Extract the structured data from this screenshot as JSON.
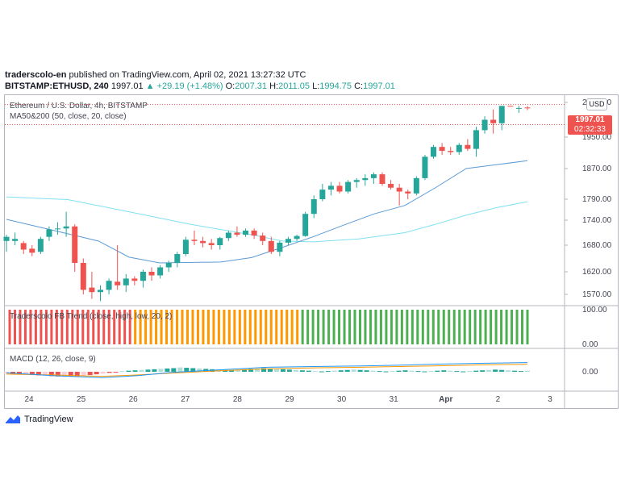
{
  "header": {
    "author": "traderscolo-en",
    "published_text": "published on TradingView.com, April 02, 2021 13:27:32 UTC",
    "symbol": "BITSTAMP:ETHUSD, 240",
    "last": "1997.01",
    "change": "+29.19 (+1.48%)",
    "open_label": "O:",
    "open": "2007.31",
    "high_label": "H:",
    "high": "2011.05",
    "low_label": "L:",
    "low": "1994.75",
    "close_label": "C:",
    "close": "1997.01"
  },
  "pane_labels": {
    "main": "Ethereum / U.S. Dollar, 4h, BITSTAMP",
    "ma": "MA50&200 (50, close, 20, close)",
    "trend": "Traderscolo FB Trend (close, high, low, 20, 2)",
    "macd": "MACD (12, 26, close, 9)"
  },
  "price_tag": {
    "value": "1997.01",
    "countdown": "02:32:33"
  },
  "currency_button": "USD",
  "footer": {
    "brand": "TradingView"
  },
  "colors": {
    "up": "#26a69a",
    "down": "#ef5350",
    "ma_fast": "#5b9bd5",
    "ma_slow": "#7fe0f0",
    "trend_bull": "#4caf50",
    "trend_bear": "#ef5350",
    "trend_neutral": "#ff9800"
  },
  "chart_data": {
    "type": "candlestick",
    "price_axis_ticks": [
      "2000.00",
      "1950.00",
      "1870.00",
      "1790.00",
      "1740.00",
      "1680.00",
      "1620.00",
      "1570.00"
    ],
    "trend_axis_ticks": [
      "100.00",
      "0.00"
    ],
    "macd_axis_ticks": [
      "0.00"
    ],
    "x_ticks": [
      {
        "label": "24",
        "i": 4
      },
      {
        "label": "25",
        "i": 10
      },
      {
        "label": "26",
        "i": 16
      },
      {
        "label": "27",
        "i": 22
      },
      {
        "label": "28",
        "i": 28
      },
      {
        "label": "29",
        "i": 34
      },
      {
        "label": "30",
        "i": 40
      },
      {
        "label": "31",
        "i": 46
      },
      {
        "label": "Apr",
        "i": 52
      },
      {
        "label": "2",
        "i": 58
      },
      {
        "label": "3",
        "i": 64
      }
    ],
    "ohlc": [
      [
        1690,
        1705,
        1665,
        1700
      ],
      [
        1690,
        1710,
        1680,
        1695
      ],
      [
        1685,
        1690,
        1660,
        1670
      ],
      [
        1672,
        1680,
        1655,
        1663
      ],
      [
        1665,
        1700,
        1660,
        1695
      ],
      [
        1700,
        1725,
        1690,
        1718
      ],
      [
        1718,
        1735,
        1705,
        1720
      ],
      [
        1720,
        1760,
        1700,
        1725
      ],
      [
        1725,
        1730,
        1620,
        1640
      ],
      [
        1640,
        1650,
        1570,
        1580
      ],
      [
        1585,
        1620,
        1560,
        1575
      ],
      [
        1575,
        1590,
        1555,
        1580
      ],
      [
        1580,
        1605,
        1570,
        1600
      ],
      [
        1598,
        1680,
        1580,
        1590
      ],
      [
        1590,
        1615,
        1575,
        1605
      ],
      [
        1605,
        1610,
        1590,
        1600
      ],
      [
        1600,
        1625,
        1585,
        1620
      ],
      [
        1620,
        1630,
        1600,
        1612
      ],
      [
        1612,
        1635,
        1605,
        1630
      ],
      [
        1630,
        1645,
        1620,
        1640
      ],
      [
        1640,
        1665,
        1630,
        1660
      ],
      [
        1660,
        1700,
        1655,
        1693
      ],
      [
        1693,
        1715,
        1680,
        1690
      ],
      [
        1690,
        1700,
        1675,
        1685
      ],
      [
        1685,
        1695,
        1670,
        1680
      ],
      [
        1680,
        1700,
        1670,
        1697
      ],
      [
        1697,
        1715,
        1690,
        1710
      ],
      [
        1710,
        1725,
        1700,
        1705
      ],
      [
        1705,
        1720,
        1700,
        1715
      ],
      [
        1715,
        1720,
        1695,
        1703
      ],
      [
        1703,
        1710,
        1680,
        1690
      ],
      [
        1690,
        1700,
        1660,
        1665
      ],
      [
        1665,
        1690,
        1655,
        1686
      ],
      [
        1686,
        1700,
        1680,
        1695
      ],
      [
        1695,
        1705,
        1690,
        1702
      ],
      [
        1702,
        1760,
        1700,
        1755
      ],
      [
        1755,
        1800,
        1745,
        1790
      ],
      [
        1790,
        1830,
        1785,
        1815
      ],
      [
        1815,
        1835,
        1800,
        1825
      ],
      [
        1825,
        1835,
        1805,
        1810
      ],
      [
        1810,
        1840,
        1805,
        1835
      ],
      [
        1835,
        1845,
        1820,
        1840
      ],
      [
        1840,
        1855,
        1825,
        1845
      ],
      [
        1845,
        1860,
        1830,
        1855
      ],
      [
        1855,
        1860,
        1825,
        1830
      ],
      [
        1830,
        1840,
        1815,
        1820
      ],
      [
        1820,
        1830,
        1775,
        1810
      ],
      [
        1810,
        1815,
        1790,
        1805
      ],
      [
        1805,
        1850,
        1800,
        1845
      ],
      [
        1845,
        1905,
        1840,
        1900
      ],
      [
        1900,
        1930,
        1895,
        1925
      ],
      [
        1925,
        1935,
        1905,
        1915
      ],
      [
        1915,
        1925,
        1905,
        1912
      ],
      [
        1912,
        1935,
        1905,
        1930
      ],
      [
        1930,
        1945,
        1915,
        1920
      ],
      [
        1920,
        1965,
        1900,
        1960
      ],
      [
        1960,
        1980,
        1955,
        1975
      ],
      [
        1975,
        1990,
        1955,
        1970
      ],
      [
        1970,
        2020,
        1960,
        2005
      ],
      [
        2005,
        2010,
        1990,
        2000
      ],
      [
        2000,
        2015,
        1995,
        2008
      ],
      [
        2007.31,
        2011.05,
        1994.75,
        1997.01
      ]
    ],
    "ma_fast": [
      [
        0,
        1742
      ],
      [
        6,
        1716
      ],
      [
        12,
        1690
      ],
      [
        16,
        1653
      ],
      [
        20,
        1640
      ],
      [
        28,
        1642
      ],
      [
        32,
        1652
      ],
      [
        36,
        1675
      ],
      [
        40,
        1700
      ],
      [
        44,
        1728
      ],
      [
        48,
        1755
      ],
      [
        52,
        1775
      ],
      [
        56,
        1820
      ],
      [
        60,
        1870
      ],
      [
        64,
        1880
      ],
      [
        68,
        1890
      ]
    ],
    "ma_slow": [
      [
        0,
        1796
      ],
      [
        8,
        1789
      ],
      [
        16,
        1760
      ],
      [
        24,
        1730
      ],
      [
        32,
        1705
      ],
      [
        36,
        1690
      ],
      [
        40,
        1688
      ],
      [
        46,
        1695
      ],
      [
        52,
        1710
      ],
      [
        56,
        1730
      ],
      [
        60,
        1752
      ],
      [
        64,
        1770
      ],
      [
        68,
        1784
      ]
    ],
    "trend": {
      "bear_count": 24,
      "neutral_count": 32,
      "bull_count": 44
    },
    "macd_hist": [
      -5,
      -6,
      -7,
      -8,
      -9,
      -10,
      -11,
      -12,
      -13,
      -14,
      -13,
      -12,
      -11,
      -9,
      -7,
      -5,
      -3,
      -2,
      2,
      3,
      4,
      5,
      6,
      7,
      8,
      9,
      10,
      12,
      11,
      10,
      9,
      8,
      7,
      6,
      5,
      4,
      6,
      7,
      8,
      9,
      10,
      9,
      8,
      7,
      6,
      5,
      4,
      3,
      2,
      1,
      2,
      3,
      4,
      5,
      6,
      5,
      4,
      3,
      2,
      1,
      2,
      3,
      4,
      3,
      2,
      1,
      2,
      3,
      4,
      3,
      2,
      1,
      2,
      3,
      4,
      5,
      6,
      5,
      4,
      3,
      2,
      3
    ],
    "macd_line": [
      [
        0,
        -3
      ],
      [
        8,
        -12
      ],
      [
        16,
        -18
      ],
      [
        22,
        -12
      ],
      [
        28,
        -2
      ],
      [
        36,
        6
      ],
      [
        44,
        14
      ],
      [
        52,
        16
      ],
      [
        60,
        18
      ],
      [
        66,
        20
      ],
      [
        72,
        23
      ],
      [
        80,
        26
      ],
      [
        88,
        28
      ]
    ],
    "signal_line": [
      [
        0,
        -7
      ],
      [
        8,
        -10
      ],
      [
        16,
        -14
      ],
      [
        22,
        -10
      ],
      [
        28,
        -4
      ],
      [
        36,
        3
      ],
      [
        44,
        9
      ],
      [
        52,
        12
      ],
      [
        60,
        14
      ],
      [
        66,
        16
      ],
      [
        72,
        18
      ],
      [
        80,
        21
      ],
      [
        88,
        23
      ]
    ]
  }
}
